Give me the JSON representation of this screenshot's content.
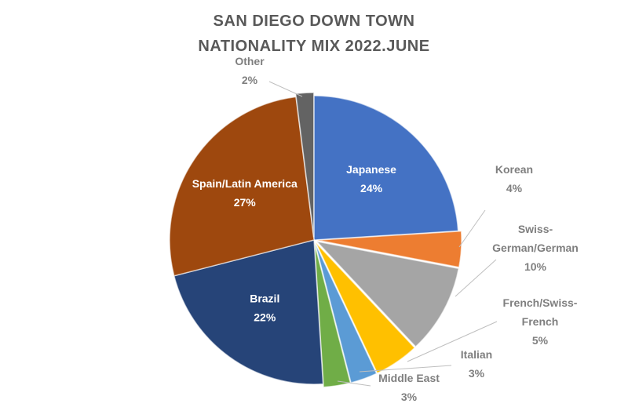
{
  "chart_data": {
    "type": "pie",
    "title_lines": [
      "SAN DIEGO DOWN TOWN",
      "NATIONALITY MIX 2022.JUNE"
    ],
    "slices": [
      {
        "label": "Japanese",
        "label_lines": [
          "Japanese"
        ],
        "value": 24,
        "display": "24%",
        "color": "#4472C4",
        "label_style": "inside"
      },
      {
        "label": "Korean",
        "label_lines": [
          "Korean"
        ],
        "value": 4,
        "display": "4%",
        "color": "#ED7D31",
        "label_style": "outside"
      },
      {
        "label": "Swiss-German/German",
        "label_lines": [
          "Swiss-",
          "German/German"
        ],
        "value": 10,
        "display": "10%",
        "color": "#A5A5A5",
        "label_style": "outside"
      },
      {
        "label": "French/Swiss-French",
        "label_lines": [
          "French/Swiss-",
          "French"
        ],
        "value": 5,
        "display": "5%",
        "color": "#FFC000",
        "label_style": "outside"
      },
      {
        "label": "Italian",
        "label_lines": [
          "Italian"
        ],
        "value": 3,
        "display": "3%",
        "color": "#5B9BD5",
        "label_style": "outside"
      },
      {
        "label": "Middle East",
        "label_lines": [
          "Middle East"
        ],
        "value": 3,
        "display": "3%",
        "color": "#70AD47",
        "label_style": "outside"
      },
      {
        "label": "Brazil",
        "label_lines": [
          "Brazil"
        ],
        "value": 22,
        "display": "22%",
        "color": "#264478",
        "label_style": "inside"
      },
      {
        "label": "Spain/Latin America",
        "label_lines": [
          "Spain/Latin America"
        ],
        "value": 27,
        "display": "27%",
        "color": "#9E480E",
        "label_style": "inside"
      },
      {
        "label": "Other",
        "label_lines": [
          "Other"
        ],
        "value": 2,
        "display": "2%",
        "color": "#636363",
        "label_style": "outside"
      }
    ],
    "start_angle_deg": 0,
    "direction": "clockwise",
    "legend": "none",
    "data_labels": "category and percentage"
  }
}
